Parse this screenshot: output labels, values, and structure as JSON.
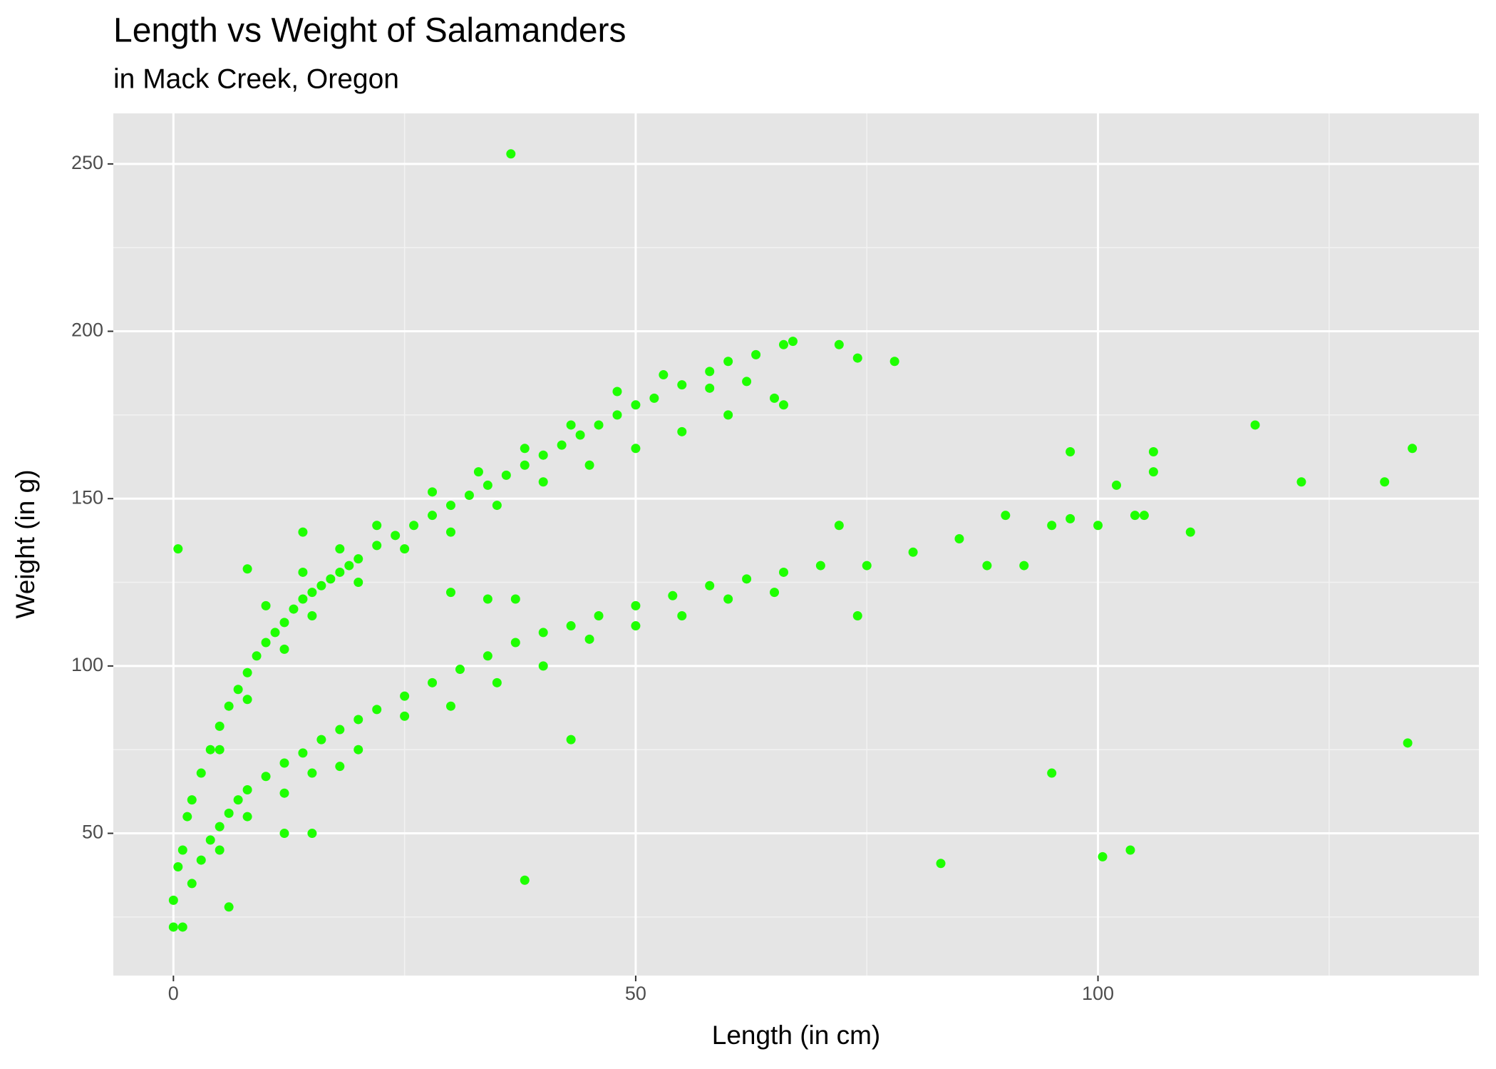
{
  "chart_data": {
    "type": "scatter",
    "title": "Length vs Weight of Salamanders",
    "subtitle": "in Mack Creek, Oregon",
    "x_label": "Length (in cm)",
    "y_label": "Weight (in g)",
    "color": "#1eff00",
    "grid": true,
    "xlim": [
      -6.5,
      141.2
    ],
    "ylim": [
      7.5,
      265.1
    ],
    "xticks": [
      0,
      50,
      100
    ],
    "yticks": [
      50,
      100,
      150,
      200,
      250
    ],
    "x_minor_grid": [
      25,
      75,
      125
    ],
    "y_minor_grid": [
      25,
      75,
      125,
      175,
      225
    ],
    "x": [
      0,
      0,
      0.5,
      1,
      1.5,
      2,
      3,
      4,
      5,
      6,
      7,
      8,
      9,
      10,
      11,
      12,
      13,
      14,
      15,
      16,
      17,
      18,
      19,
      20,
      22,
      24,
      26,
      28,
      30,
      32,
      34,
      36,
      38,
      40,
      42,
      44,
      46,
      48,
      50,
      52,
      55,
      58,
      60,
      63,
      66,
      67,
      72,
      74,
      78,
      5,
      8,
      12,
      15,
      20,
      25,
      30,
      35,
      40,
      45,
      50,
      55,
      60,
      65,
      10,
      14,
      18,
      22,
      28,
      33,
      38,
      43,
      48,
      53,
      58,
      62,
      66,
      1,
      2,
      3,
      4,
      5,
      6,
      7,
      8,
      10,
      12,
      14,
      16,
      18,
      20,
      22,
      25,
      28,
      31,
      34,
      37,
      40,
      43,
      46,
      50,
      54,
      58,
      62,
      66,
      70,
      75,
      80,
      85,
      90,
      95,
      100,
      105,
      110,
      117,
      122,
      131,
      134,
      5,
      8,
      12,
      15,
      20,
      25,
      30,
      35,
      40,
      45,
      50,
      55,
      60,
      65,
      72,
      74,
      97,
      97,
      102,
      106,
      106,
      104,
      92,
      88,
      36.5,
      0.5,
      38,
      43,
      6,
      83,
      95,
      100.5,
      103.5,
      133.5,
      8,
      15,
      12,
      14,
      18,
      30,
      34,
      37
    ],
    "values": [
      22,
      30,
      40,
      45,
      55,
      60,
      68,
      75,
      82,
      88,
      93,
      98,
      103,
      107,
      110,
      113,
      117,
      120,
      122,
      124,
      126,
      128,
      130,
      132,
      136,
      139,
      142,
      145,
      148,
      151,
      154,
      157,
      160,
      163,
      166,
      169,
      172,
      175,
      178,
      180,
      184,
      188,
      191,
      193,
      196,
      197,
      196,
      192,
      191,
      75,
      90,
      105,
      115,
      125,
      135,
      140,
      148,
      155,
      160,
      165,
      170,
      175,
      180,
      118,
      128,
      135,
      142,
      152,
      158,
      165,
      172,
      182,
      187,
      183,
      185,
      178,
      22,
      35,
      42,
      48,
      52,
      56,
      60,
      63,
      67,
      71,
      74,
      78,
      81,
      84,
      87,
      91,
      95,
      99,
      103,
      107,
      110,
      112,
      115,
      118,
      121,
      124,
      126,
      128,
      130,
      130,
      134,
      138,
      145,
      142,
      142,
      145,
      140,
      172,
      155,
      155,
      165,
      45,
      55,
      62,
      68,
      75,
      85,
      88,
      95,
      100,
      108,
      112,
      115,
      120,
      122,
      142,
      115,
      164,
      144,
      154,
      164,
      158,
      145,
      130,
      130,
      253,
      135,
      36,
      78,
      28,
      41,
      68,
      43,
      45,
      77,
      129,
      50,
      50,
      140,
      70,
      122,
      120,
      120
    ]
  }
}
